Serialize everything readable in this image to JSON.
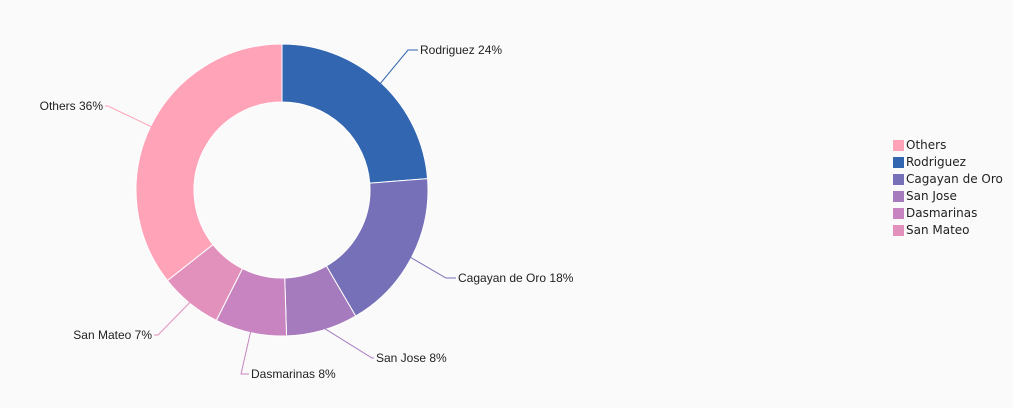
{
  "chart_data": {
    "type": "pie",
    "donut": true,
    "title": "",
    "categories": [
      "Rodriguez",
      "Cagayan de Oro",
      "San Jose",
      "Dasmarinas",
      "San Mateo",
      "Others"
    ],
    "values": [
      24,
      18,
      8,
      8,
      7,
      36
    ],
    "labels": [
      "Rodriguez 24%",
      "Cagayan de Oro 18%",
      "San Jose 8%",
      "Dasmarinas 8%",
      "San Mateo 7%",
      "Others 36%"
    ],
    "colors": [
      "#3366b0",
      "#7670b9",
      "#a67bbe",
      "#c784c0",
      "#e291bc",
      "#ffa3b9"
    ],
    "legend_placement": "right",
    "legend": [
      {
        "label": "Others",
        "color": "#ffa3b9"
      },
      {
        "label": "Rodriguez",
        "color": "#3366b0"
      },
      {
        "label": "Cagayan de Oro",
        "color": "#7670b9"
      },
      {
        "label": "San Jose",
        "color": "#a67bbe"
      },
      {
        "label": "Dasmarinas",
        "color": "#c784c0"
      },
      {
        "label": "San Mateo",
        "color": "#e291bc"
      }
    ]
  }
}
